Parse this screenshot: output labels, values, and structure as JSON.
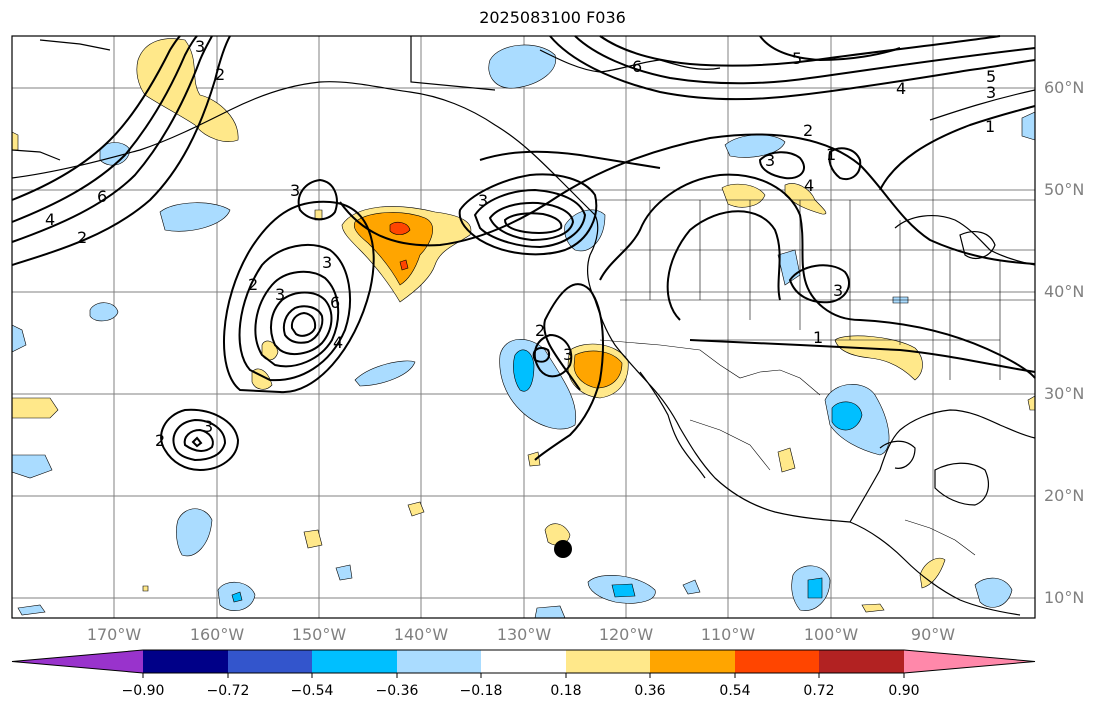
{
  "title": "2025083100 F036",
  "lat_labels": [
    "60°N",
    "50°N",
    "40°N",
    "30°N",
    "20°N",
    "10°N"
  ],
  "lon_labels": [
    "170°W",
    "160°W",
    "150°W",
    "140°W",
    "130°W",
    "120°W",
    "110°W",
    "100°W",
    "90°W"
  ],
  "contour_labels": [
    "3",
    "2",
    "6",
    "4",
    "2",
    "3",
    "3",
    "2",
    "3",
    "4",
    "6",
    "3",
    "5",
    "6",
    "4",
    "5",
    "3",
    "2",
    "3",
    "1",
    "1",
    "4",
    "2",
    "3",
    "1",
    "3",
    "2",
    "3"
  ],
  "colorbar": {
    "tick_labels": [
      "−0.90",
      "−0.72",
      "−0.54",
      "−0.36",
      "−0.18",
      "0.18",
      "0.36",
      "0.54",
      "0.72",
      "0.90"
    ],
    "colors": [
      "#9933cc",
      "#000088",
      "#3355cc",
      "#00bfff",
      "#aadcff",
      "#ffffff",
      "#ffe88a",
      "#ffa500",
      "#ff4500",
      "#b22222",
      "#ff88aa"
    ]
  },
  "colors": {
    "coast": "#000000",
    "grid": "#808080",
    "contour": "#000000",
    "marker": "#000000"
  }
}
